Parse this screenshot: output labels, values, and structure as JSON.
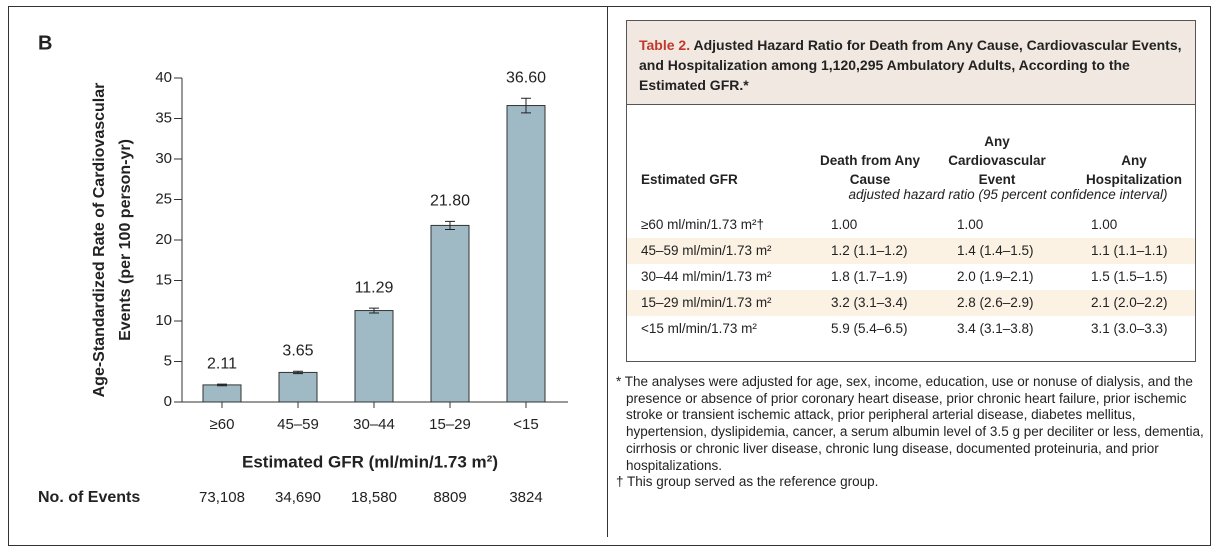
{
  "chart_data": {
    "type": "bar",
    "panel_label": "B",
    "ylabel_lines": [
      "Age-Standardized Rate of Cardiovascular",
      "Events (per 100 person-yr)"
    ],
    "xlabel": "Estimated GFR (ml/min/1.73 m²)",
    "categories": [
      "≥60",
      "45–59",
      "30–44",
      "15–29",
      "<15"
    ],
    "values": [
      2.11,
      3.65,
      11.29,
      21.8,
      36.6
    ],
    "value_labels": [
      "2.11",
      "3.65",
      "11.29",
      "21.80",
      "36.60"
    ],
    "errors": [
      0.1,
      0.15,
      0.3,
      0.5,
      0.9
    ],
    "color": "#9fb9c5",
    "ylim": [
      0,
      40
    ],
    "yticks": [
      0,
      5,
      10,
      15,
      20,
      25,
      30,
      35,
      40
    ],
    "events_label": "No. of Events",
    "events": [
      "73,108",
      "34,690",
      "18,580",
      "8809",
      "3824"
    ]
  },
  "table": {
    "title_label": "Table 2.",
    "title": "Adjusted Hazard Ratio for Death from Any Cause, Cardiovascular Events, and Hospitalization among 1,120,295 Ambulatory Adults, According to the Estimated GFR.*",
    "columns": [
      "Estimated GFR",
      "Death from Any Cause",
      "Any Cardiovascular Event",
      "Any Hospitalization"
    ],
    "unit_note": "adjusted hazard ratio (95 percent confidence interval)",
    "rows": [
      [
        "≥60 ml/min/1.73 m²†",
        "1.00",
        "1.00",
        "1.00"
      ],
      [
        "45–59 ml/min/1.73 m²",
        "1.2 (1.1–1.2)",
        "1.4 (1.4–1.5)",
        "1.1 (1.1–1.1)"
      ],
      [
        "30–44 ml/min/1.73 m²",
        "1.8 (1.7–1.9)",
        "2.0 (1.9–2.1)",
        "1.5 (1.5–1.5)"
      ],
      [
        "15–29 ml/min/1.73 m²",
        "3.2 (3.1–3.4)",
        "2.8 (2.6–2.9)",
        "2.1 (2.0–2.2)"
      ],
      [
        "<15 ml/min/1.73 m²",
        "5.9 (5.4–6.5)",
        "3.4 (3.1–3.8)",
        "3.1 (3.0–3.3)"
      ]
    ],
    "footnotes": [
      "* The analyses were adjusted for age, sex, income, education, use or nonuse of dialysis, and the presence or absence of prior coronary heart disease, prior chronic heart failure, prior ischemic stroke or transient ischemic attack, prior peripheral arterial disease, diabetes mellitus, hypertension, dyslipidemia, cancer, a serum albumin level of 3.5 g per deciliter or less, dementia, cirrhosis or chronic liver disease, chronic lung disease, documented proteinuria, and prior hospitalizations.",
      "† This group served as the reference group."
    ]
  }
}
